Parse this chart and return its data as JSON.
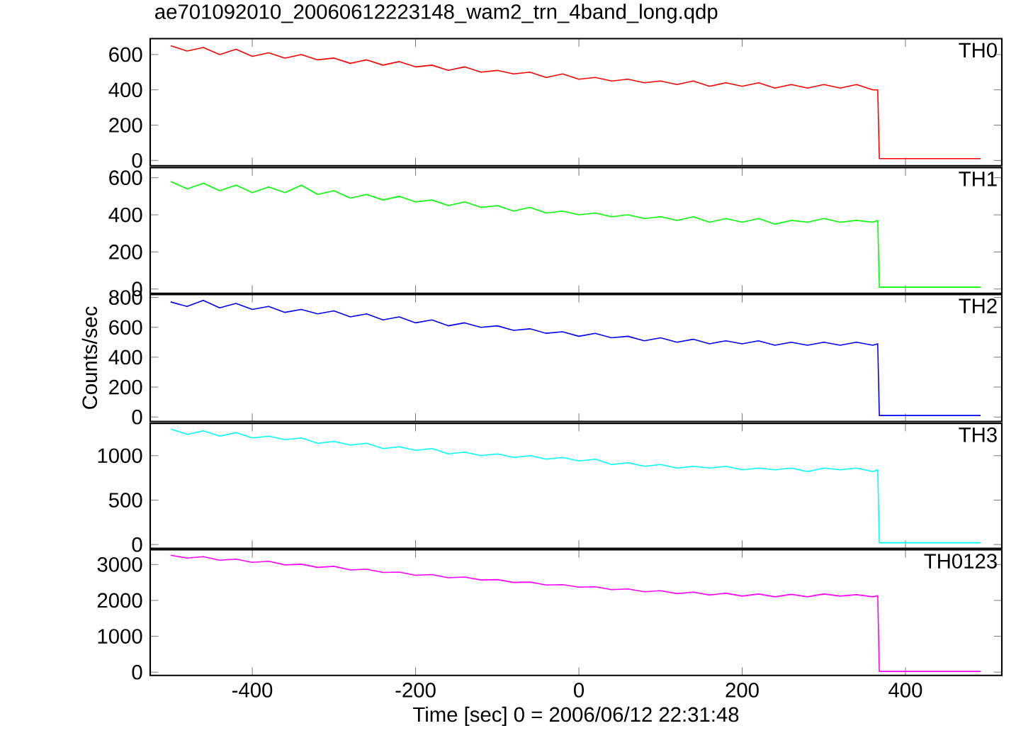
{
  "chart_data": [
    {
      "type": "line",
      "title": "ae701092010_20060612223148_wam2_trn_4band_long.qdp",
      "tick_labels": "y",
      "xlim": [
        -525,
        518
      ],
      "ylim": [
        -30,
        690
      ],
      "xticks": [
        -400,
        -200,
        0,
        200,
        400
      ],
      "yticks": [
        0,
        200,
        400,
        600
      ],
      "x": [
        -500,
        -480,
        -460,
        -440,
        -420,
        -400,
        -380,
        -360,
        -340,
        -320,
        -300,
        -280,
        -260,
        -240,
        -220,
        -200,
        -180,
        -160,
        -140,
        -120,
        -100,
        -80,
        -60,
        -40,
        -20,
        0,
        20,
        40,
        60,
        80,
        100,
        120,
        140,
        160,
        180,
        200,
        220,
        240,
        260,
        280,
        300,
        320,
        340,
        360,
        366,
        368,
        492
      ],
      "series": [
        {
          "name": "TH0",
          "color": "#ff0000",
          "values": [
            650,
            620,
            640,
            600,
            630,
            590,
            610,
            580,
            600,
            570,
            580,
            550,
            570,
            540,
            560,
            530,
            540,
            510,
            530,
            500,
            510,
            490,
            500,
            470,
            490,
            460,
            470,
            450,
            460,
            440,
            450,
            430,
            450,
            420,
            440,
            420,
            440,
            410,
            430,
            410,
            430,
            410,
            430,
            400,
            400,
            10,
            10
          ]
        }
      ]
    },
    {
      "type": "line",
      "tick_labels": "y",
      "xlim": [
        -525,
        518
      ],
      "ylim": [
        -23,
        655
      ],
      "xticks": [
        -400,
        -200,
        0,
        200,
        400
      ],
      "yticks": [
        0,
        200,
        400,
        600
      ],
      "x": [
        -500,
        -480,
        -460,
        -440,
        -420,
        -400,
        -380,
        -360,
        -340,
        -320,
        -300,
        -280,
        -260,
        -240,
        -220,
        -200,
        -180,
        -160,
        -140,
        -120,
        -100,
        -80,
        -60,
        -40,
        -20,
        0,
        20,
        40,
        60,
        80,
        100,
        120,
        140,
        160,
        180,
        200,
        220,
        240,
        260,
        280,
        300,
        320,
        340,
        360,
        366,
        368,
        492
      ],
      "series": [
        {
          "name": "TH1",
          "color": "#00ff00",
          "values": [
            580,
            540,
            570,
            530,
            560,
            520,
            550,
            520,
            560,
            510,
            530,
            490,
            510,
            480,
            500,
            470,
            480,
            450,
            470,
            440,
            450,
            420,
            440,
            410,
            420,
            400,
            410,
            390,
            400,
            380,
            390,
            370,
            390,
            360,
            380,
            360,
            380,
            350,
            370,
            360,
            380,
            360,
            370,
            360,
            370,
            10,
            10
          ]
        }
      ]
    },
    {
      "type": "line",
      "ylabel": "Counts/sec",
      "tick_labels": "y",
      "xlim": [
        -525,
        518
      ],
      "ylim": [
        -30,
        820
      ],
      "xticks": [
        -400,
        -200,
        0,
        200,
        400
      ],
      "yticks": [
        0,
        200,
        400,
        600,
        800
      ],
      "x": [
        -500,
        -480,
        -460,
        -440,
        -420,
        -400,
        -380,
        -360,
        -340,
        -320,
        -300,
        -280,
        -260,
        -240,
        -220,
        -200,
        -180,
        -160,
        -140,
        -120,
        -100,
        -80,
        -60,
        -40,
        -20,
        0,
        20,
        40,
        60,
        80,
        100,
        120,
        140,
        160,
        180,
        200,
        220,
        240,
        260,
        280,
        300,
        320,
        340,
        360,
        366,
        368,
        492
      ],
      "series": [
        {
          "name": "TH2",
          "color": "#0000ff",
          "values": [
            770,
            740,
            780,
            730,
            760,
            720,
            740,
            700,
            720,
            690,
            710,
            670,
            690,
            650,
            670,
            630,
            650,
            610,
            630,
            600,
            610,
            580,
            590,
            560,
            570,
            540,
            560,
            530,
            540,
            510,
            530,
            500,
            520,
            490,
            510,
            490,
            510,
            480,
            500,
            480,
            500,
            480,
            500,
            480,
            490,
            10,
            10
          ]
        }
      ]
    },
    {
      "type": "line",
      "tick_labels": "y",
      "xlim": [
        -525,
        518
      ],
      "ylim": [
        -43,
        1364
      ],
      "xticks": [
        -400,
        -200,
        0,
        200,
        400
      ],
      "yticks": [
        0,
        500,
        1000
      ],
      "x": [
        -500,
        -480,
        -460,
        -440,
        -420,
        -400,
        -380,
        -360,
        -340,
        -320,
        -300,
        -280,
        -260,
        -240,
        -220,
        -200,
        -180,
        -160,
        -140,
        -120,
        -100,
        -80,
        -60,
        -40,
        -20,
        0,
        20,
        40,
        60,
        80,
        100,
        120,
        140,
        160,
        180,
        200,
        220,
        240,
        260,
        280,
        300,
        320,
        340,
        360,
        366,
        368,
        492
      ],
      "series": [
        {
          "name": "TH3",
          "color": "#00ffff",
          "values": [
            1300,
            1240,
            1280,
            1220,
            1260,
            1200,
            1220,
            1180,
            1200,
            1140,
            1160,
            1120,
            1140,
            1080,
            1100,
            1060,
            1080,
            1020,
            1040,
            1000,
            1020,
            980,
            1000,
            960,
            980,
            940,
            960,
            900,
            920,
            880,
            900,
            860,
            880,
            860,
            880,
            840,
            860,
            840,
            860,
            820,
            860,
            840,
            860,
            820,
            840,
            20,
            20
          ]
        }
      ]
    },
    {
      "type": "line",
      "xlabel": "Time [sec] 0 = 2006/06/12 22:31:48",
      "xlim": [
        -525,
        518
      ],
      "ylim": [
        -90,
        3415
      ],
      "xticks": [
        -400,
        -200,
        0,
        200,
        400
      ],
      "yticks": [
        0,
        1000,
        2000,
        3000
      ],
      "x": [
        -500,
        -480,
        -460,
        -440,
        -420,
        -400,
        -380,
        -360,
        -340,
        -320,
        -300,
        -280,
        -260,
        -240,
        -220,
        -200,
        -180,
        -160,
        -140,
        -120,
        -100,
        -80,
        -60,
        -40,
        -20,
        0,
        20,
        40,
        60,
        80,
        100,
        120,
        140,
        160,
        180,
        200,
        220,
        240,
        260,
        280,
        300,
        320,
        340,
        360,
        366,
        368,
        492
      ],
      "series": [
        {
          "name": "TH0123",
          "color": "#ff00ff",
          "values": [
            3260,
            3180,
            3220,
            3120,
            3150,
            3060,
            3090,
            2990,
            3010,
            2920,
            2950,
            2850,
            2870,
            2780,
            2790,
            2700,
            2720,
            2630,
            2650,
            2570,
            2580,
            2500,
            2510,
            2430,
            2440,
            2370,
            2380,
            2300,
            2320,
            2240,
            2270,
            2190,
            2230,
            2150,
            2200,
            2120,
            2180,
            2100,
            2170,
            2100,
            2180,
            2120,
            2160,
            2100,
            2130,
            20,
            20
          ]
        }
      ]
    }
  ]
}
